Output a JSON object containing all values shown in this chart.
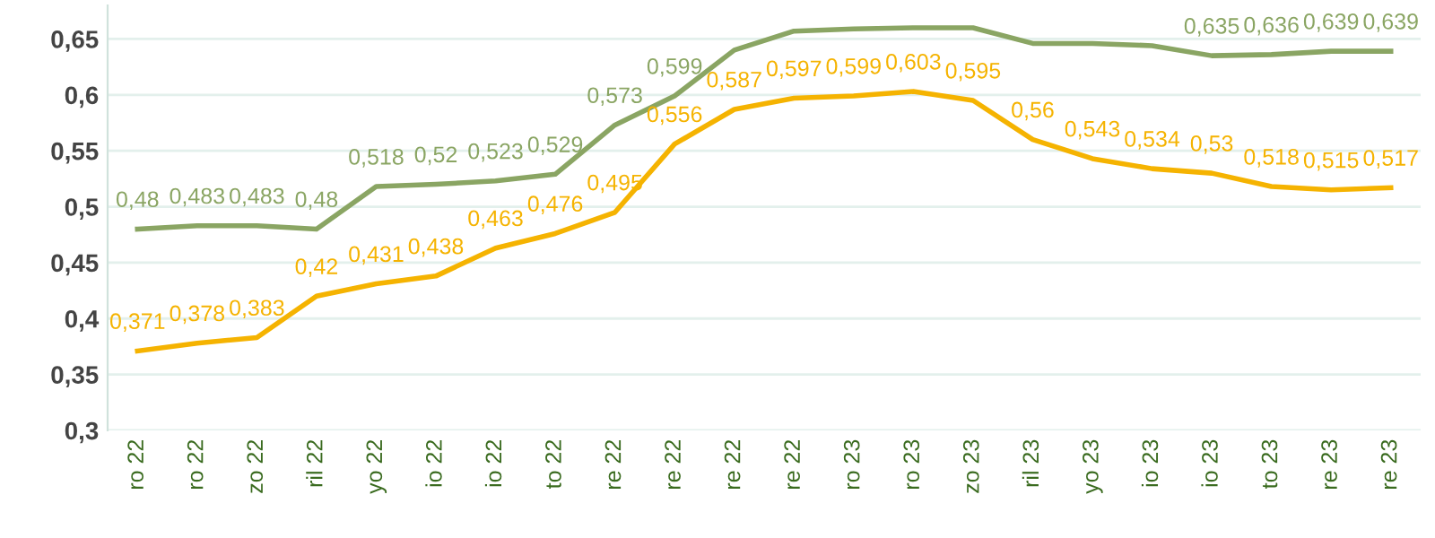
{
  "chart_data": {
    "type": "line",
    "categories": [
      "ro 22",
      "ro 22",
      "zo 22",
      "ril 22",
      "yo 22",
      "io 22",
      "io 22",
      "to 22",
      "re 22",
      "re 22",
      "re 22",
      "re 22",
      "ro 23",
      "ro 23",
      "zo 23",
      "ril 23",
      "yo 23",
      "io 23",
      "io 23",
      "to 23",
      "re 23",
      "re 23"
    ],
    "series": [
      {
        "color": "#8aa563",
        "values": [
          0.48,
          0.483,
          0.483,
          0.48,
          0.518,
          0.52,
          0.523,
          0.529,
          0.573,
          0.599,
          0.64,
          0.657,
          0.659,
          0.66,
          0.66,
          0.646,
          0.646,
          0.644,
          0.635,
          0.636,
          0.639,
          0.639
        ],
        "value_labels": [
          "0,48",
          "0,483",
          "0,483",
          "0,48",
          "0,518",
          "0,52",
          "0,523",
          "0,529",
          "0,573",
          "0,599",
          null,
          null,
          null,
          null,
          null,
          null,
          null,
          null,
          "0,635",
          "0,636",
          "0,639",
          "0,639"
        ]
      },
      {
        "color": "#f5b301",
        "values": [
          0.371,
          0.378,
          0.383,
          0.42,
          0.431,
          0.438,
          0.463,
          0.476,
          0.495,
          0.556,
          0.587,
          0.597,
          0.599,
          0.603,
          0.595,
          0.56,
          0.543,
          0.534,
          0.53,
          0.518,
          0.515,
          0.517
        ],
        "value_labels": [
          "0,371",
          "0,378",
          "0,383",
          "0,42",
          "0,431",
          "0,438",
          "0,463",
          "0,476",
          "0,495",
          "0,556",
          "0,587",
          "0,597",
          "0,599",
          "0,603",
          "0,595",
          "0,56",
          "0,543",
          "0,534",
          "0,53",
          "0,518",
          "0,515",
          "0,517"
        ]
      }
    ],
    "ylim": [
      0.3,
      0.68
    ],
    "yticks": [
      {
        "value": 0.3,
        "label": "0,3"
      },
      {
        "value": 0.35,
        "label": "0,35"
      },
      {
        "value": 0.4,
        "label": "0,4"
      },
      {
        "value": 0.45,
        "label": "0,45"
      },
      {
        "value": 0.5,
        "label": "0,5"
      },
      {
        "value": 0.55,
        "label": "0,55"
      },
      {
        "value": 0.6,
        "label": "0,6"
      },
      {
        "value": 0.65,
        "label": "0,65"
      }
    ],
    "grid": "y",
    "legend": false,
    "marker": "none",
    "line_style": "solid"
  }
}
